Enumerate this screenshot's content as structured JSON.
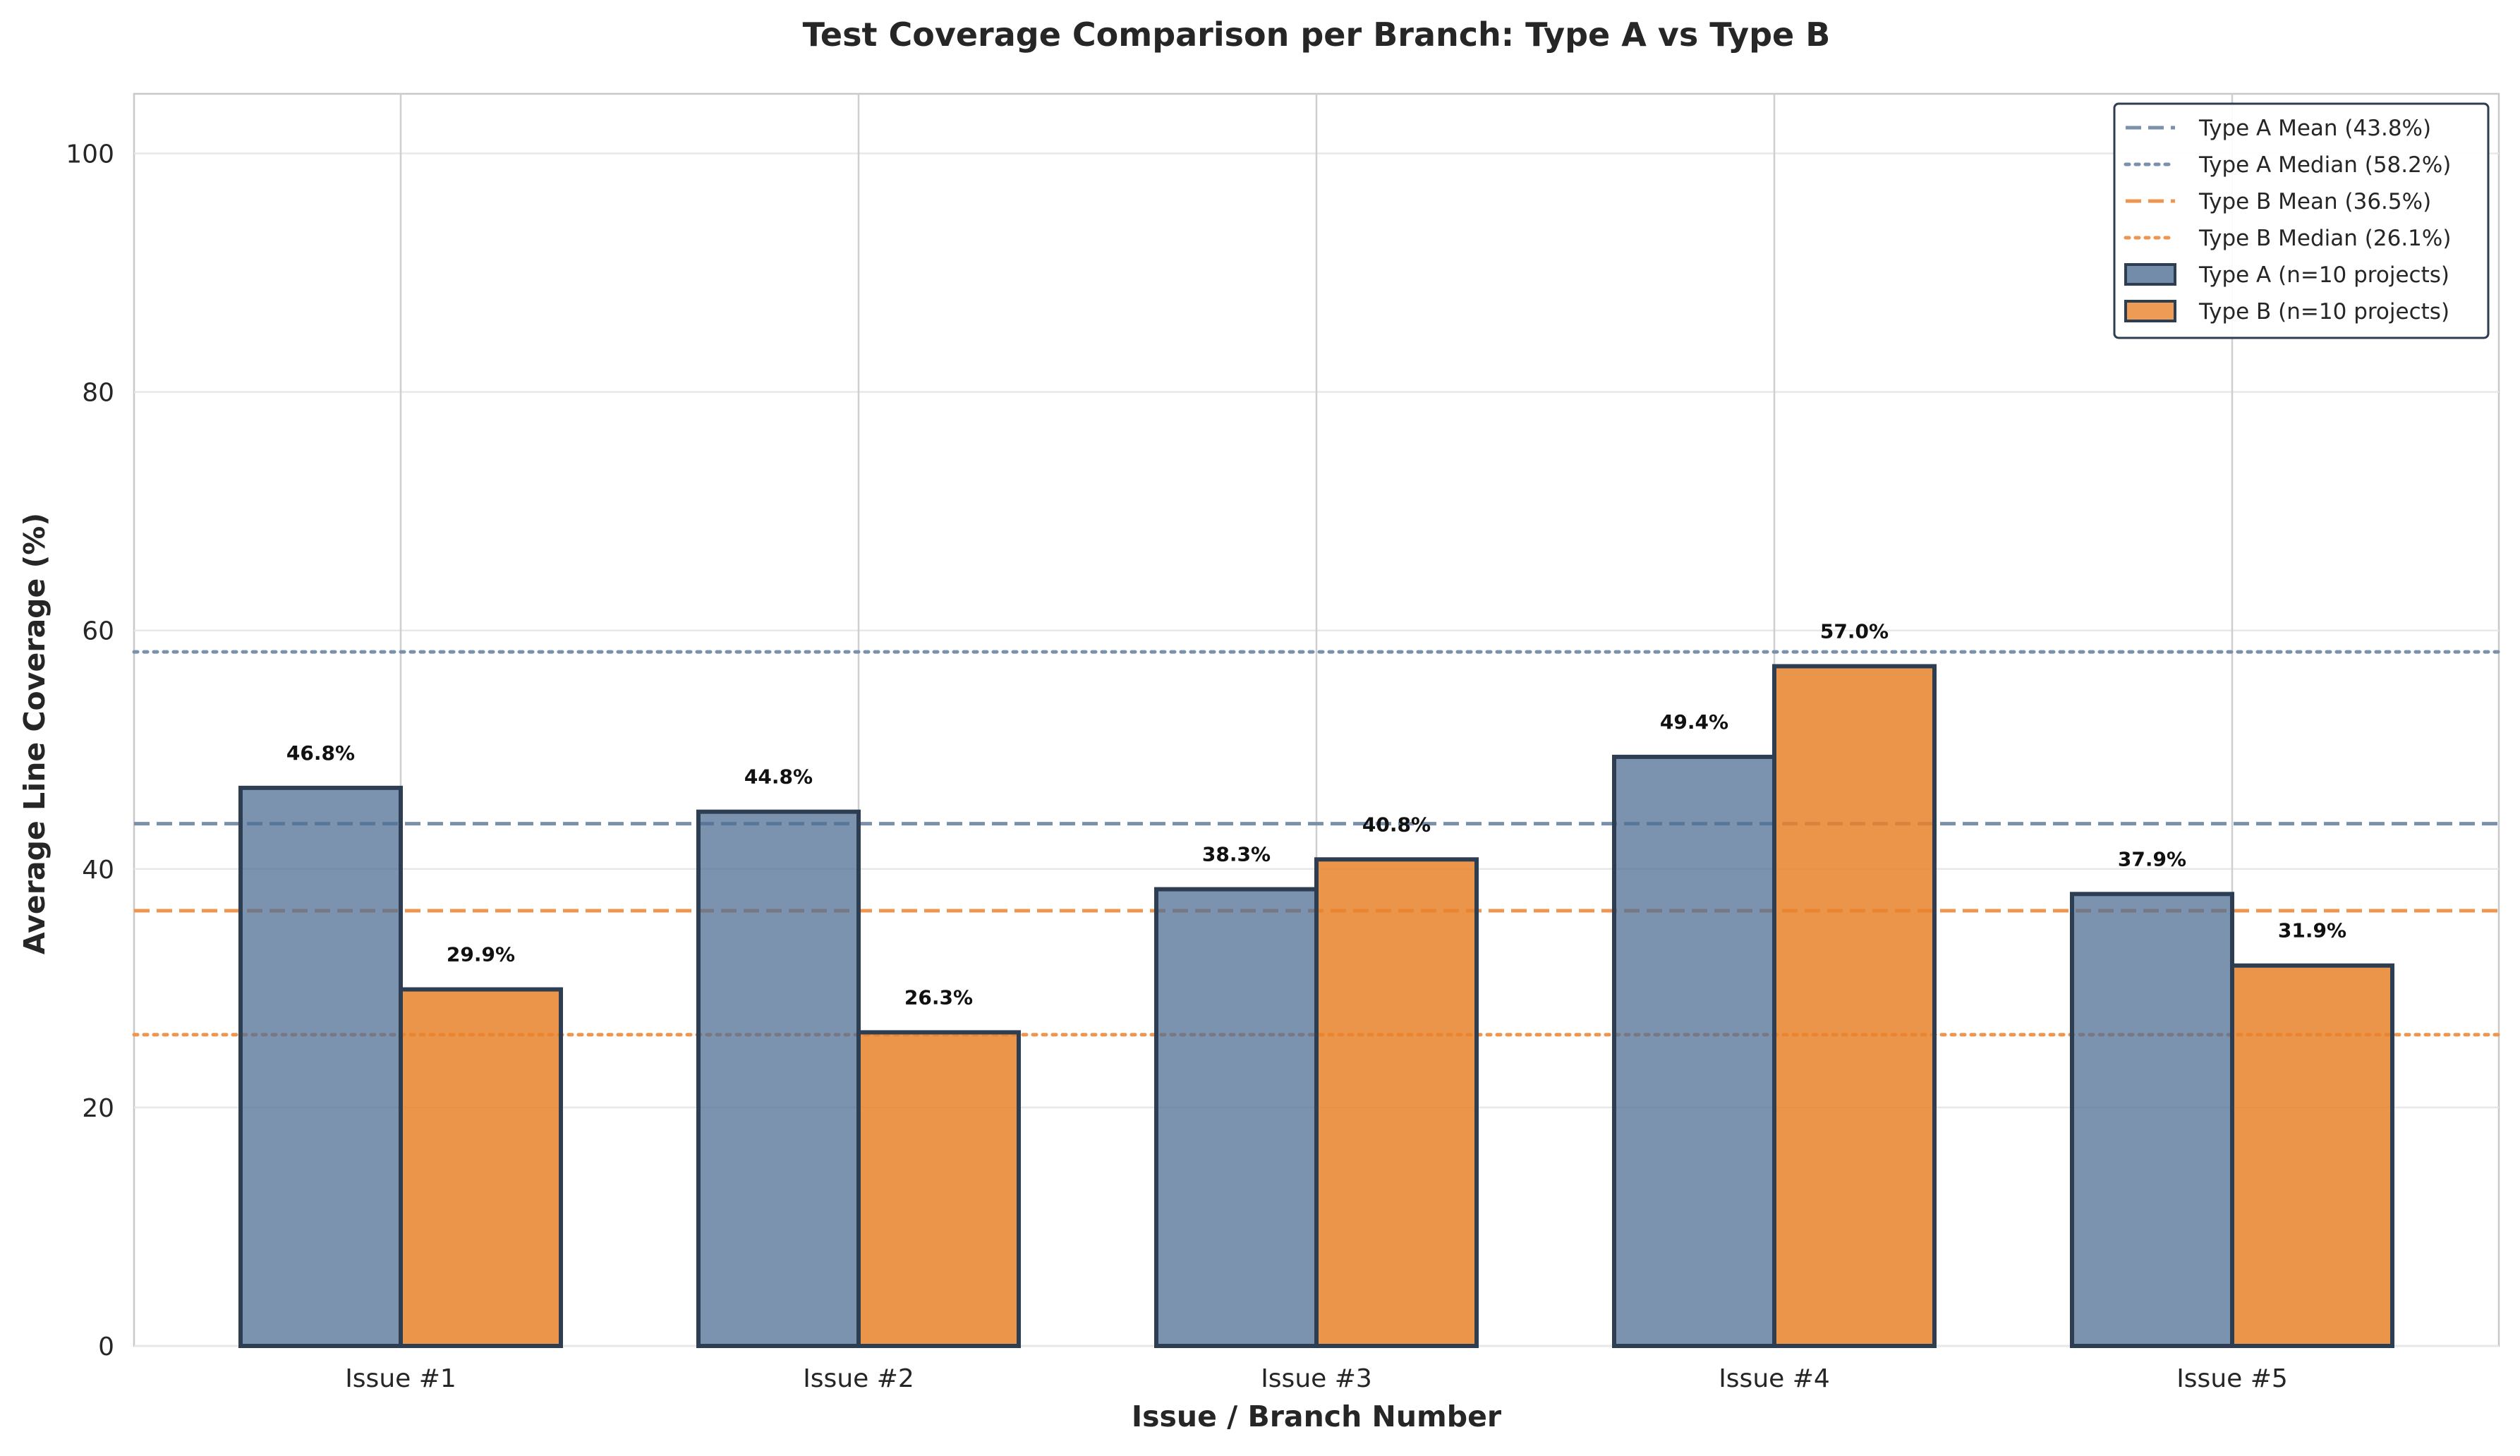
{
  "chart_data": {
    "type": "bar",
    "title": "Test Coverage Comparison per Branch: Type A vs Type B",
    "xlabel": "Issue / Branch Number",
    "ylabel": "Average Line Coverage (%)",
    "ylim": [
      0,
      105
    ],
    "yticks": [
      "0",
      "20",
      "40",
      "60",
      "80",
      "100"
    ],
    "ytick_values": [
      0,
      20,
      40,
      60,
      80,
      100
    ],
    "grid": true,
    "legend_position": "top-right",
    "categories": [
      "Issue #1",
      "Issue #2",
      "Issue #3",
      "Issue #4",
      "Issue #5"
    ],
    "series": [
      {
        "name": "Type A (n=10 projects)",
        "color": "#4f6f94",
        "edge_color": "#2e3e52",
        "values": [
          46.8,
          44.8,
          38.3,
          49.4,
          37.9
        ],
        "labels": [
          "46.8%",
          "44.8%",
          "38.3%",
          "49.4%",
          "37.9%"
        ]
      },
      {
        "name": "Type B (n=10 projects)",
        "color": "#e8822a",
        "edge_color": "#2e3e52",
        "values": [
          29.9,
          26.3,
          40.8,
          57.0,
          31.9
        ],
        "labels": [
          "29.9%",
          "26.3%",
          "40.8%",
          "57.0%",
          "31.9%"
        ]
      }
    ],
    "reference_lines": [
      {
        "name": "Type A Mean (43.8%)",
        "value": 43.8,
        "color": "#7a90ab",
        "style": "dashed"
      },
      {
        "name": "Type A Median (58.2%)",
        "value": 58.2,
        "color": "#7a90ab",
        "style": "dotted"
      },
      {
        "name": "Type B Mean (36.5%)",
        "value": 36.5,
        "color": "#ee9550",
        "style": "dashed"
      },
      {
        "name": "Type B Median (26.1%)",
        "value": 26.1,
        "color": "#ee9550",
        "style": "dotted"
      }
    ]
  }
}
